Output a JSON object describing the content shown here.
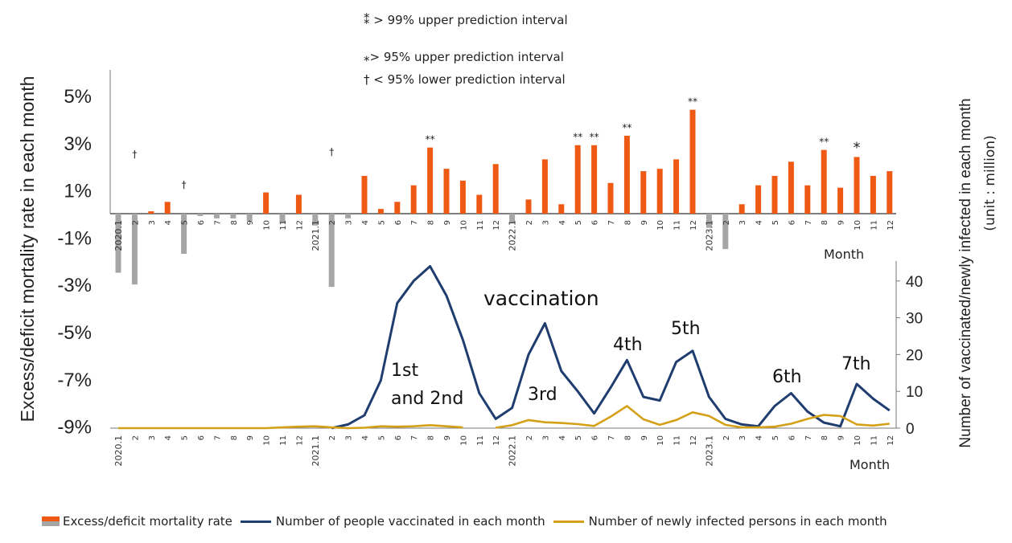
{
  "chart_data": [
    {
      "type": "bar",
      "name": "mortality",
      "ylabel": "Excess/deficit mortality rate in each month",
      "xlabel": "Month",
      "yticks": [
        "5%",
        "3%",
        "1%",
        "-1%",
        "-3%",
        "-5%",
        "-7%",
        "-9%"
      ],
      "ylim": [
        -9,
        5
      ],
      "categories": [
        "2020.1",
        "2",
        "3",
        "4",
        "5",
        "6",
        "7",
        "8",
        "9",
        "10",
        "11",
        "12",
        "2021.1",
        "2",
        "3",
        "4",
        "5",
        "6",
        "7",
        "8",
        "9",
        "10",
        "11",
        "12",
        "2022.1",
        "2",
        "3",
        "4",
        "5",
        "6",
        "7",
        "8",
        "9",
        "10",
        "11",
        "12",
        "2023.1",
        "2",
        "3",
        "4",
        "5",
        "6",
        "7",
        "8",
        "9",
        "10",
        "11",
        "12"
      ],
      "values": [
        -2.5,
        -3.0,
        0.1,
        0.5,
        -1.7,
        -0.1,
        -0.2,
        -0.2,
        -0.3,
        0.9,
        -0.4,
        0.8,
        -0.5,
        -3.1,
        -0.2,
        1.6,
        0.2,
        0.5,
        1.2,
        2.8,
        1.9,
        1.4,
        0.8,
        2.1,
        -0.4,
        0.6,
        2.3,
        0.4,
        2.9,
        2.9,
        1.3,
        3.3,
        1.8,
        1.9,
        2.3,
        4.4,
        -0.6,
        -1.5,
        0.4,
        1.2,
        1.6,
        2.2,
        1.2,
        2.7,
        1.1,
        2.4,
        1.6,
        1.8
      ],
      "markers": [
        {
          "index": 1,
          "symbol": "†"
        },
        {
          "index": 4,
          "symbol": "†"
        },
        {
          "index": 13,
          "symbol": "†"
        },
        {
          "index": 19,
          "symbol": "**"
        },
        {
          "index": 28,
          "symbol": "**"
        },
        {
          "index": 29,
          "symbol": "**"
        },
        {
          "index": 31,
          "symbol": "**"
        },
        {
          "index": 35,
          "symbol": "**"
        },
        {
          "index": 43,
          "symbol": "**"
        },
        {
          "index": 45,
          "symbol": "*"
        }
      ],
      "colors": {
        "positive": "#ee5a14",
        "negative": "#a6a6a6"
      }
    },
    {
      "type": "line",
      "name": "vaccination-and-infection",
      "ylabel": "Number of vaccinated/newly infected in each month",
      "ylabel_unit": "(unit : million)",
      "xlabel": "Month",
      "ylim": [
        0,
        45
      ],
      "yticks": [
        "40",
        "30",
        "20",
        "10",
        "0"
      ],
      "x": [
        "2020.1",
        "2",
        "3",
        "4",
        "5",
        "6",
        "7",
        "8",
        "9",
        "10",
        "11",
        "12",
        "2021.1",
        "2",
        "3",
        "4",
        "5",
        "6",
        "7",
        "8",
        "9",
        "10",
        "11",
        "12",
        "2022.1",
        "2",
        "3",
        "4",
        "5",
        "6",
        "7",
        "8",
        "9",
        "10",
        "11",
        "12",
        "2023.1",
        "2",
        "3",
        "4",
        "5",
        "6",
        "7",
        "8",
        "9",
        "10",
        "11",
        "12"
      ],
      "series": [
        {
          "name": "Number of people vaccinated in each month",
          "color": "#1f3d6e",
          "values": [
            null,
            null,
            null,
            null,
            null,
            null,
            null,
            null,
            null,
            null,
            null,
            null,
            null,
            0,
            1,
            3.5,
            13,
            34,
            40,
            44,
            36,
            24,
            9.5,
            2.5,
            5.5,
            20,
            28.5,
            15.5,
            10,
            4,
            11,
            18.5,
            8.5,
            7.5,
            18,
            21,
            8.5,
            2.5,
            1,
            0.5,
            6,
            9.5,
            4.5,
            1.5,
            0.5,
            12,
            8,
            4.8
          ]
        },
        {
          "name": "Number of newly infected persons in each month",
          "color": "#d4a017",
          "values": [
            0,
            0,
            0,
            0,
            0,
            0,
            0,
            0,
            0,
            0,
            0.2,
            0.4,
            0.5,
            0.2,
            0,
            0.1,
            0.5,
            0.4,
            0.5,
            0.8,
            0.5,
            0.2,
            null,
            0.1,
            0.8,
            2.2,
            1.6,
            1.4,
            1.1,
            0.6,
            3.1,
            6,
            2.4,
            0.9,
            2.2,
            4.3,
            3.3,
            0.9,
            0.2,
            0.2,
            0.4,
            1.2,
            2.5,
            3.6,
            3.3,
            1,
            0.7,
            1.2
          ]
        }
      ],
      "annotations": [
        {
          "text": "vaccination"
        },
        {
          "text": "1st"
        },
        {
          "text": "and 2nd"
        },
        {
          "text": "3rd"
        },
        {
          "text": "4th"
        },
        {
          "text": "5th"
        },
        {
          "text": "6th"
        },
        {
          "text": "7th"
        }
      ]
    }
  ],
  "notes": {
    "p99_upper": "⁑ > 99% upper prediction interval",
    "p95_upper": "⁎> 95% upper prediction interval",
    "p95_lower": "† < 95% lower prediction interval"
  },
  "legend": {
    "mortality": "Excess/deficit mortality rate",
    "vaccinated": "Number of people vaccinated in each month",
    "infected": "Number of newly infected persons in each month"
  }
}
